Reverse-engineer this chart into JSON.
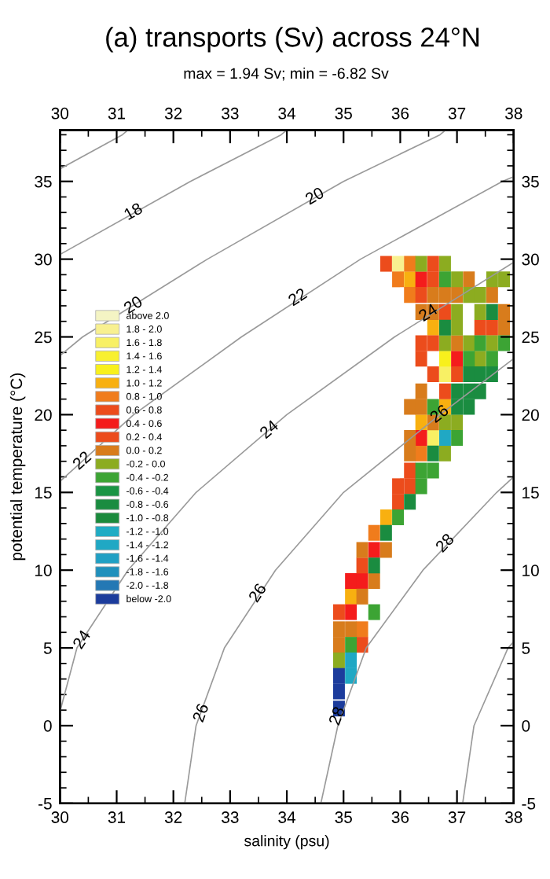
{
  "chart_data": {
    "type": "scatter",
    "title": "(a) transports (Sv) across 24°N",
    "subtitle": "max = 1.94 Sv; min = -6.82 Sv",
    "xlabel": "salinity (psu)",
    "ylabel": "potential temperature (°C)",
    "xlim": [
      30,
      38
    ],
    "ylim": [
      -5,
      38.3
    ],
    "x2lim": [
      30,
      38
    ],
    "y2lim": [
      -5,
      38.3
    ],
    "xticks": [
      30,
      {
        "value": 30.5,
        "label": null
      },
      31,
      {
        "value": 31.5,
        "label": null
      },
      32,
      {
        "value": 32.5,
        "label": null
      },
      33,
      {
        "value": 33.5,
        "label": null
      },
      34,
      {
        "value": 34.5,
        "label": null
      },
      35,
      {
        "value": 35.5,
        "label": null
      },
      36,
      {
        "value": 36.5,
        "label": null
      },
      37,
      {
        "value": 37.5,
        "label": null
      },
      38
    ],
    "x2ticks": [
      30,
      {
        "value": 30.5,
        "label": null
      },
      31,
      {
        "value": 31.5,
        "label": null
      },
      32,
      {
        "value": 32.5,
        "label": null
      },
      33,
      {
        "value": 33.5,
        "label": null
      },
      34,
      {
        "value": 34.5,
        "label": null
      },
      35,
      {
        "value": 35.5,
        "label": null
      },
      36,
      {
        "value": 36.5,
        "label": null
      },
      37,
      {
        "value": 37.5,
        "label": null
      },
      38
    ],
    "yticks": [
      -5,
      {
        "value": -4,
        "label": null
      },
      {
        "value": -3,
        "label": null
      },
      {
        "value": -2,
        "label": null
      },
      {
        "value": -1,
        "label": null
      },
      0,
      {
        "value": 1,
        "label": null
      },
      {
        "value": 2,
        "label": null
      },
      {
        "value": 3,
        "label": null
      },
      {
        "value": 4,
        "label": null
      },
      5,
      {
        "value": 6,
        "label": null
      },
      {
        "value": 7,
        "label": null
      },
      {
        "value": 8,
        "label": null
      },
      {
        "value": 9,
        "label": null
      },
      10,
      {
        "value": 11,
        "label": null
      },
      {
        "value": 12,
        "label": null
      },
      {
        "value": 13,
        "label": null
      },
      {
        "value": 14,
        "label": null
      },
      15,
      {
        "value": 16,
        "label": null
      },
      {
        "value": 17,
        "label": null
      },
      {
        "value": 18,
        "label": null
      },
      {
        "value": 19,
        "label": null
      },
      20,
      {
        "value": 21,
        "label": null
      },
      {
        "value": 22,
        "label": null
      },
      {
        "value": 23,
        "label": null
      },
      {
        "value": 24,
        "label": null
      },
      25,
      {
        "value": 26,
        "label": null
      },
      {
        "value": 27,
        "label": null
      },
      {
        "value": 28,
        "label": null
      },
      {
        "value": 29,
        "label": null
      },
      30,
      {
        "value": 31,
        "label": null
      },
      {
        "value": 32,
        "label": null
      },
      {
        "value": 33,
        "label": null
      },
      {
        "value": 34,
        "label": null
      },
      35,
      {
        "value": 36,
        "label": null
      },
      {
        "value": 37,
        "label": null
      },
      {
        "value": 38,
        "label": null
      }
    ],
    "y2ticks": [
      -5,
      {
        "value": -4,
        "label": null
      },
      {
        "value": -3,
        "label": null
      },
      {
        "value": -2,
        "label": null
      },
      {
        "value": -1,
        "label": null
      },
      0,
      {
        "value": 1,
        "label": null
      },
      {
        "value": 2,
        "label": null
      },
      {
        "value": 3,
        "label": null
      },
      {
        "value": 4,
        "label": null
      },
      5,
      {
        "value": 6,
        "label": null
      },
      {
        "value": 7,
        "label": null
      },
      {
        "value": 8,
        "label": null
      },
      {
        "value": 9,
        "label": null
      },
      10,
      {
        "value": 11,
        "label": null
      },
      {
        "value": 12,
        "label": null
      },
      {
        "value": 13,
        "label": null
      },
      {
        "value": 14,
        "label": null
      },
      15,
      {
        "value": 16,
        "label": null
      },
      {
        "value": 17,
        "label": null
      },
      {
        "value": 18,
        "label": null
      },
      {
        "value": 19,
        "label": null
      },
      20,
      {
        "value": 21,
        "label": null
      },
      {
        "value": 22,
        "label": null
      },
      {
        "value": 23,
        "label": null
      },
      {
        "value": 24,
        "label": null
      },
      25,
      {
        "value": 26,
        "label": null
      },
      {
        "value": 27,
        "label": null
      },
      {
        "value": 28,
        "label": null
      },
      {
        "value": 29,
        "label": null
      },
      30,
      {
        "value": 31,
        "label": null
      },
      {
        "value": 32,
        "label": null
      },
      {
        "value": 33,
        "label": null
      },
      {
        "value": 34,
        "label": null
      },
      35,
      {
        "value": 36,
        "label": null
      },
      {
        "value": 37,
        "label": null
      },
      {
        "value": 38,
        "label": null
      }
    ],
    "marker": "square",
    "legend": "left",
    "series": [
      {
        "name": "above 2.0",
        "color": "#f4f4c4"
      },
      {
        "name": "1.8 - 2.0",
        "color": "#f8f090",
        "x": [
          35.96
        ],
        "values": [
          29.7
        ]
      },
      {
        "name": "1.6 - 1.8",
        "color": "#f8f064",
        "x": [
          36.79,
          36.58
        ],
        "values": [
          22.6,
          18.5
        ]
      },
      {
        "name": "1.4 - 1.6",
        "color": "#f8f030"
      },
      {
        "name": "1.2 - 1.4",
        "color": "#f8f01c",
        "x": [
          36.79
        ],
        "values": [
          23.6
        ]
      },
      {
        "name": "1.0 - 1.2",
        "color": "#f8b010",
        "x": [
          36.17,
          36.58,
          36.79,
          36.37,
          35.75,
          35.13
        ],
        "values": [
          28.7,
          25.6,
          20.5,
          19.5,
          13.4,
          8.3
        ]
      },
      {
        "name": "0.8 - 1.0",
        "color": "#f07c1c",
        "x": [
          36.17,
          35.96,
          36.17,
          36.37,
          35.54,
          35.33
        ],
        "values": [
          29.7,
          28.7,
          27.7,
          17.5,
          12.4,
          6.2
        ]
      },
      {
        "name": "0.6 - 0.8",
        "color": "#ec4c1c"
      },
      {
        "name": "0.4 - 0.6",
        "color": "#f41c1c",
        "x": [
          36.37,
          37.0,
          36.37,
          35.54,
          35.13,
          35.33,
          35.13
        ],
        "values": [
          28.7,
          23.6,
          18.5,
          11.3,
          9.3,
          9.3,
          7.3
        ]
      },
      {
        "name": "0.2 - 0.4",
        "color": "#ec4c1c",
        "x": [
          35.75,
          36.58,
          36.58,
          36.37,
          36.79,
          37.41,
          37.62,
          36.37,
          36.58,
          36.37,
          36.58,
          37.0,
          36.79,
          36.17,
          35.96,
          36.17,
          35.96,
          35.33,
          34.92,
          35.33
        ],
        "values": [
          29.7,
          29.7,
          28.7,
          27.7,
          26.6,
          25.6,
          25.6,
          24.6,
          24.6,
          23.6,
          22.6,
          22.6,
          21.5,
          16.4,
          15.4,
          15.4,
          14.4,
          10.3,
          7.3,
          5.2
        ]
      },
      {
        "name": "0.0 - 0.2",
        "color": "#d87c1c",
        "x": [
          37.21,
          36.58,
          36.79,
          37.0,
          37.62,
          36.37,
          36.58,
          37.83,
          37.83,
          37.0,
          36.37,
          36.17,
          36.37,
          36.58,
          36.17,
          36.17,
          35.33,
          35.75,
          35.54,
          35.33,
          34.92,
          35.13,
          34.92
        ],
        "values": [
          28.7,
          27.7,
          27.7,
          27.7,
          27.7,
          26.6,
          26.6,
          26.6,
          25.6,
          24.6,
          21.5,
          20.5,
          20.5,
          19.5,
          18.5,
          17.5,
          11.3,
          11.3,
          9.3,
          8.3,
          6.2,
          6.2,
          5.2
        ]
      },
      {
        "name": "-0.2 - 0.0",
        "color": "#8cac20",
        "x": [
          36.37,
          36.79,
          37.0,
          37.62,
          37.83,
          37.21,
          37.41,
          37.0,
          37.41,
          37.0,
          36.79,
          37.21,
          37.62,
          37.41,
          36.79,
          37.0,
          36.79,
          34.92
        ],
        "values": [
          29.7,
          29.7,
          28.7,
          28.7,
          28.7,
          27.7,
          27.7,
          26.6,
          26.6,
          25.6,
          24.6,
          24.6,
          24.6,
          23.6,
          19.5,
          19.5,
          17.5,
          4.2
        ]
      },
      {
        "name": "-0.4 - -0.2",
        "color": "#3ca434",
        "x": [
          36.79,
          37.41,
          37.83,
          37.21,
          37.62,
          36.58,
          37.0,
          36.37,
          36.58,
          36.37,
          35.96,
          35.54,
          35.13
        ],
        "values": [
          28.7,
          24.6,
          24.6,
          23.6,
          23.6,
          20.5,
          18.5,
          16.4,
          16.4,
          15.4,
          13.4,
          7.3,
          5.2
        ]
      },
      {
        "name": "-0.6 - -0.4",
        "color": "#1a9444"
      },
      {
        "name": "-0.8 - -0.6",
        "color": "#1a8c40",
        "x": [
          37.62,
          36.79,
          37.21,
          37.41,
          37.62,
          37.0,
          37.21,
          37.41,
          37.0,
          37.21,
          36.58,
          36.17,
          35.75,
          35.54
        ],
        "values": [
          26.6,
          25.6,
          22.6,
          22.6,
          22.6,
          21.5,
          21.5,
          21.5,
          20.5,
          20.5,
          17.5,
          14.4,
          12.4,
          10.3
        ]
      },
      {
        "name": "-1.0 - -0.8",
        "color": "#1a8a3c"
      },
      {
        "name": "-1.2 - -1.0",
        "color": "#20acc4"
      },
      {
        "name": "-1.4 - -1.2",
        "color": "#20a8c4",
        "x": [
          36.79,
          35.13,
          35.13
        ],
        "values": [
          18.5,
          4.2,
          3.2
        ]
      },
      {
        "name": "-1.6 - -1.4",
        "color": "#20a0c4"
      },
      {
        "name": "-1.8 - -1.6",
        "color": "#2090bc"
      },
      {
        "name": "-2.0 - -1.8",
        "color": "#2478b4"
      },
      {
        "name": "below -2.0",
        "color": "#1c3c9c",
        "x": [
          34.92,
          34.92,
          34.92
        ],
        "values": [
          3.2,
          2.2,
          1.1
        ]
      },
      {
        "type": "line",
        "marker": "none",
        "color": "#9a9a9a",
        "x": [
          30,
          31.1,
          31.2
        ],
        "values": [
          35.8,
          38,
          38.3
        ]
      },
      {
        "type": "line",
        "marker": "none",
        "color": "#9a9a9a",
        "x": [
          30,
          32.3,
          33.9,
          34.0
        ],
        "values": [
          30.3,
          35,
          38,
          38.3
        ]
      },
      {
        "type": "line",
        "marker": "none",
        "color": "#9a9a9a",
        "x": [
          30,
          30.4,
          32.6,
          35.0,
          36.7,
          36.8
        ],
        "values": [
          23.8,
          25,
          30,
          35,
          38,
          38.3
        ]
      },
      {
        "type": "line",
        "marker": "none",
        "color": "#9a9a9a",
        "x": [
          30,
          31.3,
          33.2,
          35.3,
          37.8,
          38
        ],
        "values": [
          15.7,
          20,
          25,
          30,
          35,
          35.3
        ]
      },
      {
        "type": "line",
        "marker": "none",
        "color": "#9a9a9a",
        "x": [
          30,
          30.3,
          31.2,
          32.4,
          34.0,
          35.9,
          38
        ],
        "values": [
          0.9,
          5,
          10,
          15,
          20,
          25,
          29.8
        ]
      },
      {
        "type": "line",
        "marker": "none",
        "color": "#9a9a9a",
        "x": [
          32.2,
          32.4,
          32.9,
          33.8,
          35.0,
          36.7,
          38
        ],
        "values": [
          -5,
          0,
          5,
          10,
          15,
          20,
          23.6
        ]
      },
      {
        "type": "line",
        "marker": "none",
        "color": "#9a9a9a",
        "x": [
          34.6,
          34.9,
          35.4,
          36.4,
          37.7,
          38
        ],
        "values": [
          -5,
          0,
          5,
          10,
          15,
          16.0
        ]
      },
      {
        "type": "line",
        "marker": "none",
        "color": "#9a9a9a",
        "x": [
          37.1,
          37.3,
          37.9,
          38
        ],
        "values": [
          -5,
          0,
          5,
          5.4
        ]
      }
    ],
    "annotations": [
      {
        "text": "18",
        "x": 31.3,
        "y": 33
      },
      {
        "text": "20",
        "x": 31.3,
        "y": 27
      },
      {
        "text": "20",
        "x": 34.5,
        "y": 34
      },
      {
        "text": "22",
        "x": 30.4,
        "y": 17
      },
      {
        "text": "22",
        "x": 34.2,
        "y": 27.5
      },
      {
        "text": "24",
        "x": 30.4,
        "y": 5.5
      },
      {
        "text": "24",
        "x": 33.7,
        "y": 19
      },
      {
        "text": "24",
        "x": 36.5,
        "y": 26.5
      },
      {
        "text": "26",
        "x": 33.5,
        "y": 8.5
      },
      {
        "text": "26",
        "x": 32.5,
        "y": 0.8
      },
      {
        "text": "26",
        "x": 36.7,
        "y": 20
      },
      {
        "text": "28",
        "x": 36.8,
        "y": 11.7
      },
      {
        "text": "28",
        "x": 34.9,
        "y": 0.6
      }
    ]
  }
}
